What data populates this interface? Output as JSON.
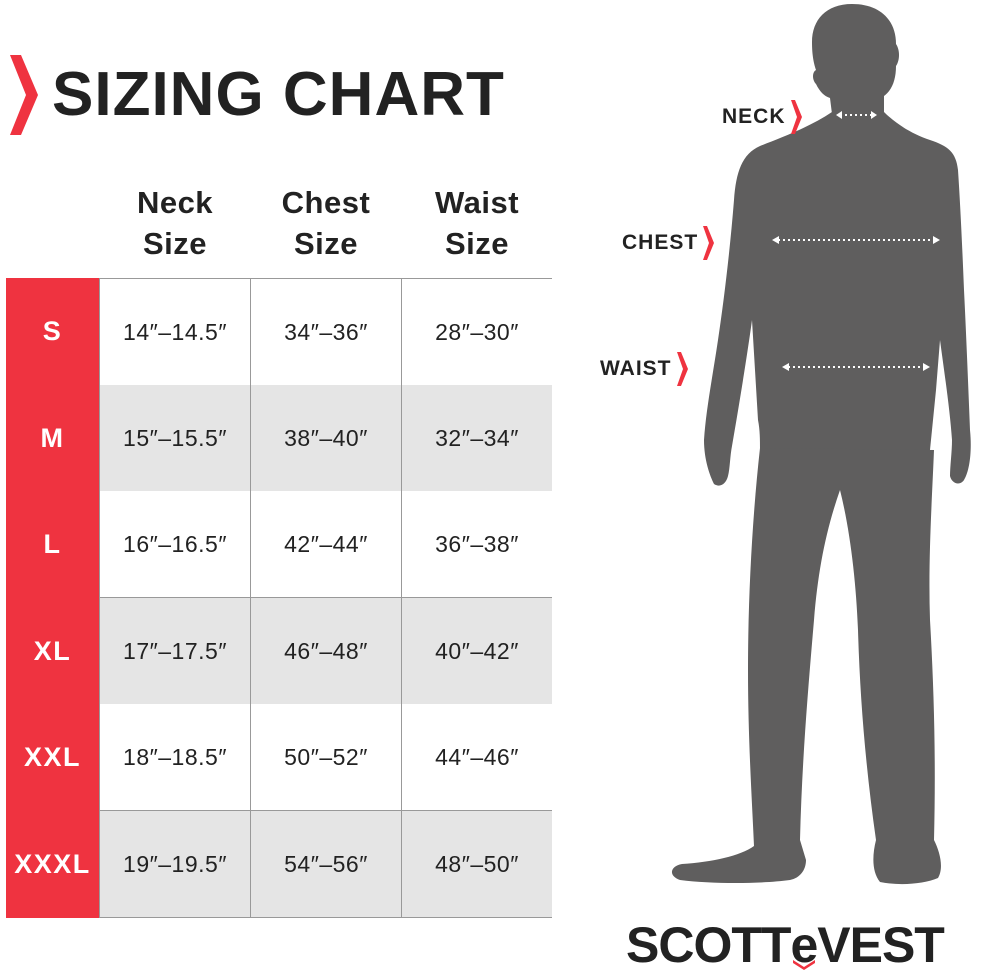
{
  "title": "SIZING CHART",
  "columns": [
    {
      "line1": "Neck",
      "line2": "Size"
    },
    {
      "line1": "Chest",
      "line2": "Size"
    },
    {
      "line1": "Waist",
      "line2": "Size"
    }
  ],
  "rows": [
    {
      "size": "S",
      "neck": "14″–14.5″",
      "chest": "34″–36″",
      "waist": "28″–30″"
    },
    {
      "size": "M",
      "neck": "15″–15.5″",
      "chest": "38″–40″",
      "waist": "32″–34″"
    },
    {
      "size": "L",
      "neck": "16″–16.5″",
      "chest": "42″–44″",
      "waist": "36″–38″"
    },
    {
      "size": "XL",
      "neck": "17″–17.5″",
      "chest": "46″–48″",
      "waist": "40″–42″"
    },
    {
      "size": "XXL",
      "neck": "18″–18.5″",
      "chest": "50″–52″",
      "waist": "44″–46″"
    },
    {
      "size": "XXXL",
      "neck": "19″–19.5″",
      "chest": "54″–56″",
      "waist": "48″–50″"
    }
  ],
  "figure": {
    "neck_label": "NECK",
    "chest_label": "CHEST",
    "waist_label": "WAIST",
    "icon": "person-silhouette-icon"
  },
  "brand": {
    "logo_pre": "SCOTT",
    "logo_e": "e",
    "logo_post": "VEST"
  },
  "colors": {
    "accent": "#ef3340",
    "text": "#222222",
    "silhouette": "#5f5e5e",
    "alt_row": "#e5e5e5"
  }
}
